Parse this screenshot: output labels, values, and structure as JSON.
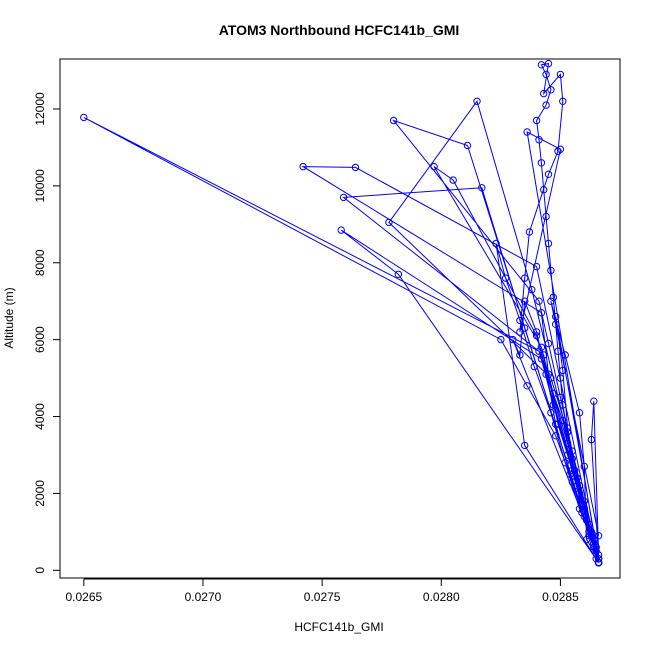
{
  "chart_data": {
    "type": "line",
    "title": "ATOM3 Northbound HCFC141b_GMI",
    "xlabel": "HCFC141b_GMI",
    "ylabel": "Altitude (m)",
    "xlim": [
      0.0264,
      0.02875
    ],
    "ylim": [
      -200,
      13300
    ],
    "x_ticks": [
      0.0265,
      0.027,
      0.0275,
      0.028,
      0.0285
    ],
    "x_tick_labels": [
      "0.0265",
      "0.0270",
      "0.0275",
      "0.0280",
      "0.0285"
    ],
    "y_ticks": [
      0,
      2000,
      4000,
      6000,
      8000,
      10000,
      12000
    ],
    "y_tick_labels": [
      "0",
      "2000",
      "4000",
      "6000",
      "8000",
      "10000",
      "12000"
    ],
    "grid": false,
    "legend": "none",
    "series_color": "#0000ff",
    "marker": "open-circle",
    "series": [
      {
        "name": "",
        "x": [
          0.02866,
          0.02865,
          0.02864,
          0.02862,
          0.02859,
          0.02857,
          0.02855,
          0.02853,
          0.02851,
          0.0285,
          0.02849,
          0.02848,
          0.02847,
          0.02846,
          0.02845,
          0.02844,
          0.02843,
          0.02842,
          0.02841,
          0.0284,
          0.02844,
          0.02846,
          0.02844,
          0.02842,
          0.02845,
          0.02843,
          0.0285,
          0.02851,
          0.02849,
          0.02845,
          0.02837,
          0.02835,
          0.02833,
          0.0285,
          0.02836,
          0.02866,
          0.02865,
          0.02862,
          0.02855,
          0.02848,
          0.02836,
          0.02825,
          0.0265,
          0.02841,
          0.02866,
          0.02864,
          0.0286,
          0.02855,
          0.02849,
          0.02845,
          0.02842,
          0.02742,
          0.02764,
          0.0284,
          0.02866,
          0.02865,
          0.0286,
          0.02854,
          0.02848,
          0.02843,
          0.02759,
          0.02817,
          0.02835,
          0.02866,
          0.02864,
          0.0286,
          0.02855,
          0.0285,
          0.02845,
          0.02841,
          0.0278,
          0.02811,
          0.02866,
          0.02863,
          0.02858,
          0.02853,
          0.02847,
          0.02842,
          0.02797,
          0.02805,
          0.0284,
          0.02866,
          0.02864,
          0.02859,
          0.02853,
          0.02847,
          0.02842,
          0.02758,
          0.02782,
          0.02866,
          0.02863,
          0.02858,
          0.02853,
          0.02846,
          0.02778,
          0.02815,
          0.02838,
          0.02866,
          0.02864,
          0.02858,
          0.02852,
          0.02846,
          0.02839,
          0.02833,
          0.02827,
          0.02823,
          0.02835,
          0.02866,
          0.02861,
          0.02856,
          0.02851,
          0.02844,
          0.0284,
          0.02835,
          0.02833,
          0.0283,
          0.02866,
          0.02864,
          0.02863,
          0.02866,
          0.02862,
          0.02857,
          0.02853,
          0.02851,
          0.02848,
          0.02866,
          0.02861,
          0.0286,
          0.02858,
          0.02852,
          0.02846,
          0.02866
        ],
        "y": [
          200,
          300,
          600,
          1000,
          1500,
          2200,
          2900,
          3600,
          4300,
          5000,
          5700,
          6400,
          7100,
          7800,
          8500,
          9200,
          9900,
          10600,
          11200,
          11700,
          12100,
          12500,
          12900,
          13150,
          13180,
          12400,
          12900,
          12200,
          10900,
          10300,
          8800,
          7600,
          6200,
          10950,
          11400,
          200,
          500,
          900,
          2300,
          3500,
          4800,
          6000,
          11780,
          5700,
          200,
          700,
          1600,
          2600,
          3800,
          5100,
          6700,
          10500,
          10480,
          7900,
          200,
          600,
          1400,
          2500,
          3800,
          5600,
          9700,
          9950,
          6300,
          200,
          900,
          1800,
          3100,
          4500,
          5900,
          7000,
          11700,
          11050,
          200,
          1000,
          2000,
          3300,
          4600,
          5800,
          10500,
          10150,
          6100,
          200,
          800,
          1700,
          3000,
          4300,
          5500,
          8850,
          7700,
          200,
          900,
          2200,
          3600,
          5000,
          9050,
          12200,
          7300,
          200,
          700,
          1600,
          2800,
          4100,
          5300,
          6500,
          7600,
          8500,
          3250,
          200,
          1300,
          2600,
          3900,
          5100,
          6200,
          7000,
          5600,
          6000,
          400,
          4400,
          3400,
          300,
          1200,
          2400,
          3700,
          5200,
          6600,
          300,
          800,
          2700,
          4100,
          5600,
          7000,
          900
        ]
      }
    ]
  }
}
